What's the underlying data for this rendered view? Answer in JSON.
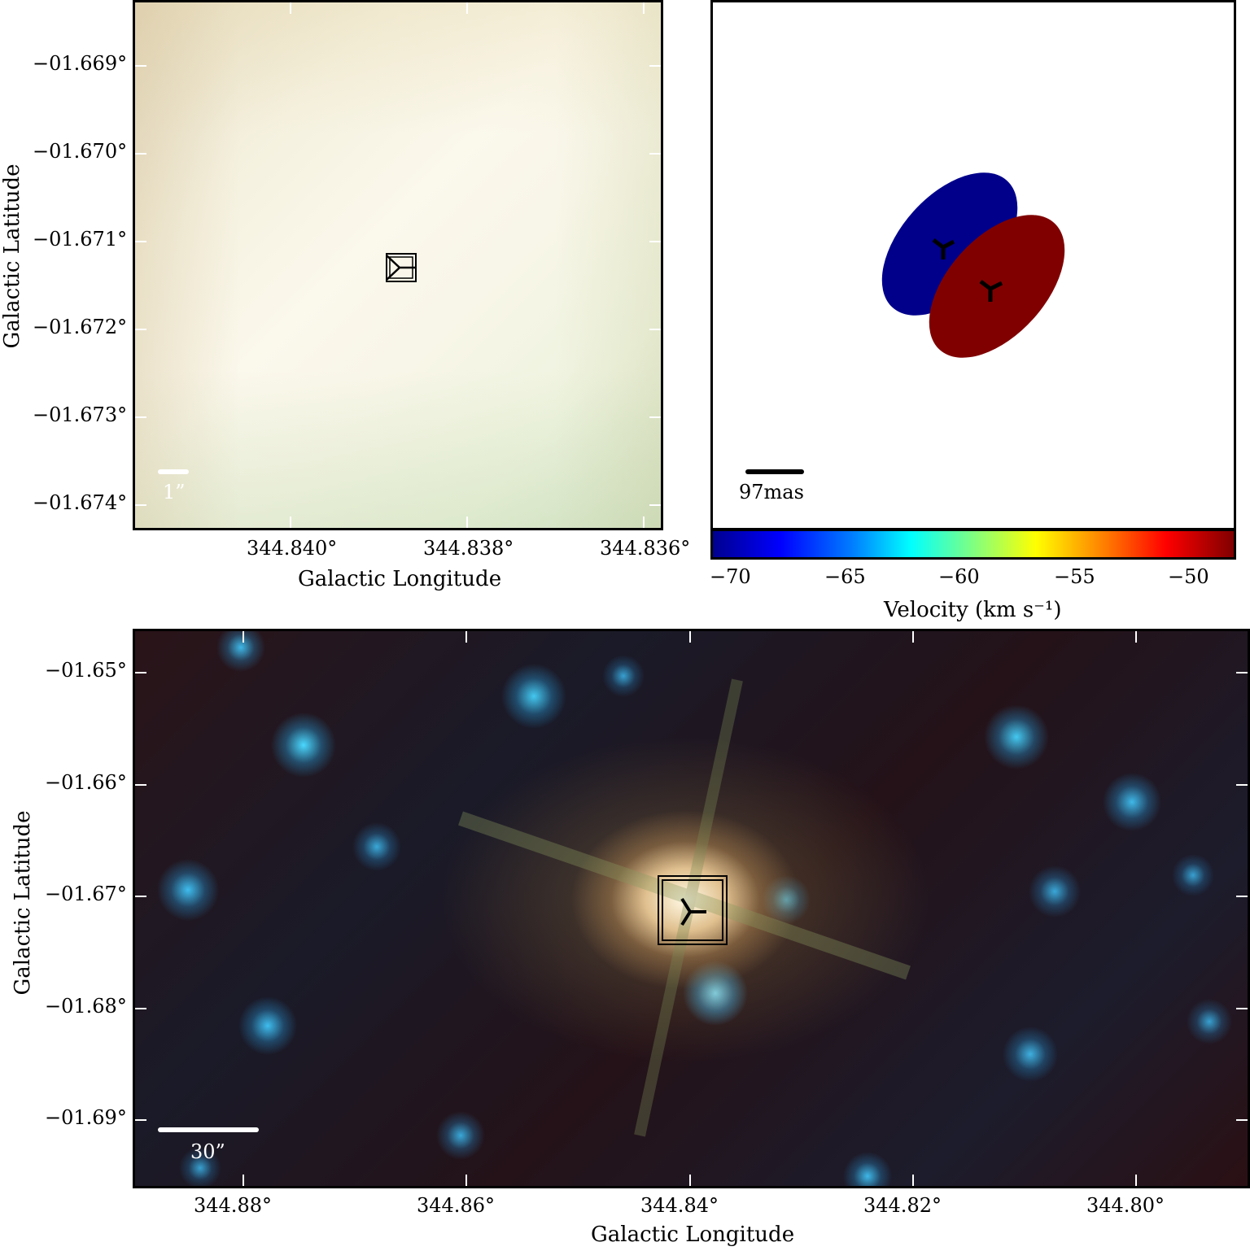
{
  "top_left": {
    "y_ticks": [
      "−01.669°",
      "−01.670°",
      "−01.671°",
      "−01.672°",
      "−01.673°",
      "−01.674°"
    ],
    "x_ticks": [
      "344.840°",
      "344.838°",
      "344.836°"
    ],
    "xlabel": "Galactic Longitude",
    "ylabel": "Galactic Latitude",
    "scale_label": "1”"
  },
  "top_right": {
    "scale_label": "97mas",
    "colorbar_ticks": [
      "−70",
      "−65",
      "−60",
      "−55",
      "−50"
    ],
    "colorbar_label": "Velocity (km s⁻¹)",
    "ellipse_colors": [
      "#00008b",
      "#800000"
    ]
  },
  "bottom": {
    "y_ticks": [
      "−01.65°",
      "−01.66°",
      "−01.67°",
      "−01.68°",
      "−01.69°"
    ],
    "x_ticks": [
      "344.88°",
      "344.86°",
      "344.84°",
      "344.82°",
      "344.80°"
    ],
    "xlabel": "Galactic Longitude",
    "ylabel": "Galactic Latitude",
    "scale_label": "30”"
  }
}
